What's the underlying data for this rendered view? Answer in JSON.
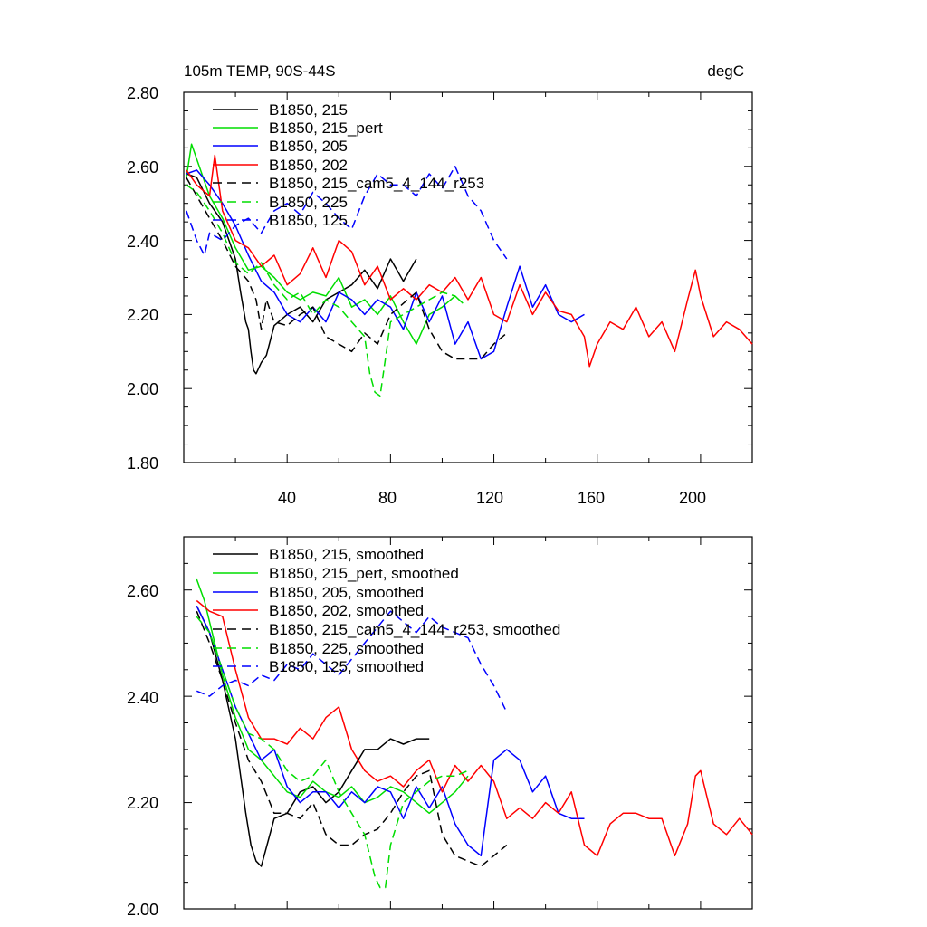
{
  "chart_data": [
    {
      "type": "line",
      "title_left": "105m TEMP, 90S-44S",
      "title_right": "degC",
      "xlim": [
        0,
        220
      ],
      "ylim": [
        1.8,
        2.8
      ],
      "xticks": [
        40,
        80,
        120,
        160,
        200
      ],
      "xtick_labels": [
        "40",
        "80",
        "120",
        "160",
        "200"
      ],
      "yticks": [
        1.8,
        2.0,
        2.2,
        2.4,
        2.6,
        2.8
      ],
      "ytick_labels": [
        "1.80",
        "2.00",
        "2.20",
        "2.40",
        "2.60",
        "2.80"
      ],
      "grid": false,
      "legend_position": "top-left",
      "series": [
        {
          "name": "B1850, 215",
          "color": "#000000",
          "dash": "solid",
          "x": [
            1,
            5,
            10,
            15,
            20,
            22,
            24,
            25,
            26,
            27,
            28,
            30,
            32,
            35,
            40,
            45,
            50,
            55,
            60,
            65,
            70,
            75,
            80,
            85,
            90
          ],
          "y": [
            2.58,
            2.57,
            2.5,
            2.45,
            2.35,
            2.26,
            2.18,
            2.16,
            2.1,
            2.05,
            2.04,
            2.07,
            2.09,
            2.17,
            2.2,
            2.22,
            2.18,
            2.24,
            2.26,
            2.28,
            2.32,
            2.27,
            2.35,
            2.29,
            2.35
          ]
        },
        {
          "name": "B1850, 215_pert",
          "color": "#00dd00",
          "dash": "solid",
          "x": [
            1,
            3,
            5,
            8,
            10,
            15,
            20,
            25,
            30,
            35,
            40,
            45,
            50,
            55,
            60,
            65,
            70,
            75,
            80,
            85,
            90,
            95,
            100,
            105,
            108
          ],
          "y": [
            2.57,
            2.66,
            2.62,
            2.56,
            2.52,
            2.46,
            2.38,
            2.32,
            2.33,
            2.3,
            2.26,
            2.24,
            2.26,
            2.25,
            2.3,
            2.22,
            2.24,
            2.2,
            2.25,
            2.18,
            2.12,
            2.2,
            2.22,
            2.25,
            2.23
          ]
        },
        {
          "name": "B1850, 205",
          "color": "#0000ff",
          "dash": "solid",
          "x": [
            1,
            5,
            10,
            15,
            20,
            25,
            30,
            35,
            40,
            45,
            50,
            55,
            60,
            65,
            70,
            75,
            80,
            85,
            90,
            95,
            100,
            105,
            110,
            115,
            120,
            125,
            130,
            135,
            140,
            145,
            150,
            155
          ],
          "y": [
            2.58,
            2.59,
            2.55,
            2.5,
            2.44,
            2.36,
            2.29,
            2.26,
            2.2,
            2.18,
            2.22,
            2.18,
            2.26,
            2.24,
            2.2,
            2.24,
            2.22,
            2.16,
            2.26,
            2.18,
            2.25,
            2.12,
            2.18,
            2.08,
            2.1,
            2.22,
            2.33,
            2.22,
            2.28,
            2.2,
            2.18,
            2.2
          ]
        },
        {
          "name": "B1850, 202",
          "color": "#ff0000",
          "dash": "solid",
          "x": [
            1,
            5,
            10,
            12,
            15,
            20,
            25,
            30,
            35,
            40,
            45,
            50,
            55,
            60,
            65,
            70,
            75,
            80,
            85,
            90,
            95,
            100,
            105,
            110,
            115,
            120,
            125,
            130,
            135,
            140,
            145,
            150,
            155,
            157,
            160,
            165,
            170,
            175,
            180,
            185,
            190,
            195,
            198,
            200,
            205,
            210,
            215,
            220
          ],
          "y": [
            2.59,
            2.55,
            2.52,
            2.63,
            2.48,
            2.4,
            2.38,
            2.33,
            2.36,
            2.28,
            2.31,
            2.38,
            2.3,
            2.4,
            2.37,
            2.28,
            2.33,
            2.24,
            2.27,
            2.24,
            2.28,
            2.26,
            2.3,
            2.24,
            2.3,
            2.2,
            2.18,
            2.28,
            2.2,
            2.26,
            2.21,
            2.2,
            2.14,
            2.06,
            2.12,
            2.18,
            2.16,
            2.22,
            2.14,
            2.18,
            2.1,
            2.24,
            2.32,
            2.25,
            2.14,
            2.18,
            2.16,
            2.12
          ]
        },
        {
          "name": "B1850, 215_cam5_4_144_r253",
          "color": "#000000",
          "dash": "dash",
          "x": [
            1,
            5,
            10,
            15,
            20,
            25,
            28,
            30,
            32,
            35,
            40,
            45,
            50,
            55,
            60,
            65,
            70,
            75,
            80,
            85,
            90,
            95,
            100,
            105,
            110,
            115,
            120,
            125
          ],
          "y": [
            2.57,
            2.52,
            2.46,
            2.4,
            2.33,
            2.29,
            2.24,
            2.16,
            2.24,
            2.18,
            2.17,
            2.2,
            2.22,
            2.14,
            2.12,
            2.1,
            2.15,
            2.12,
            2.2,
            2.23,
            2.26,
            2.16,
            2.1,
            2.08,
            2.08,
            2.08,
            2.12,
            2.15
          ]
        },
        {
          "name": "B1850, 225",
          "color": "#00dd00",
          "dash": "dash",
          "x": [
            1,
            5,
            10,
            15,
            20,
            25,
            30,
            35,
            40,
            45,
            50,
            55,
            60,
            65,
            70,
            72,
            74,
            76,
            78,
            80,
            85,
            90,
            95,
            100,
            105
          ],
          "y": [
            2.55,
            2.53,
            2.48,
            2.42,
            2.34,
            2.31,
            2.34,
            2.28,
            2.24,
            2.26,
            2.2,
            2.24,
            2.22,
            2.18,
            2.14,
            2.04,
            1.99,
            1.98,
            2.08,
            2.18,
            2.2,
            2.22,
            2.24,
            2.26,
            2.25
          ]
        },
        {
          "name": "B1850, 125",
          "color": "#0000ff",
          "dash": "dash",
          "x": [
            1,
            3,
            5,
            8,
            10,
            15,
            20,
            25,
            30,
            35,
            40,
            45,
            50,
            55,
            60,
            65,
            70,
            75,
            80,
            85,
            90,
            95,
            100,
            105,
            110,
            115,
            120,
            125
          ],
          "y": [
            2.48,
            2.44,
            2.4,
            2.36,
            2.42,
            2.4,
            2.44,
            2.46,
            2.42,
            2.48,
            2.5,
            2.47,
            2.53,
            2.5,
            2.46,
            2.43,
            2.52,
            2.58,
            2.55,
            2.55,
            2.52,
            2.58,
            2.54,
            2.6,
            2.52,
            2.48,
            2.4,
            2.35
          ]
        }
      ]
    },
    {
      "type": "line",
      "xlim": [
        0,
        220
      ],
      "ylim": [
        2.0,
        2.7
      ],
      "yticks": [
        2.0,
        2.2,
        2.4,
        2.6
      ],
      "ytick_labels": [
        "2.00",
        "2.20",
        "2.40",
        "2.60"
      ],
      "grid": false,
      "legend_position": "top-left",
      "series": [
        {
          "name": "B1850, 215, smoothed",
          "color": "#000000",
          "dash": "solid",
          "x": [
            5,
            10,
            15,
            20,
            22,
            24,
            26,
            28,
            30,
            35,
            40,
            45,
            50,
            55,
            60,
            65,
            70,
            75,
            80,
            85,
            90,
            95
          ],
          "y": [
            2.57,
            2.52,
            2.43,
            2.32,
            2.25,
            2.18,
            2.12,
            2.09,
            2.08,
            2.17,
            2.18,
            2.22,
            2.23,
            2.2,
            2.22,
            2.26,
            2.3,
            2.3,
            2.32,
            2.31,
            2.32,
            2.32
          ]
        },
        {
          "name": "B1850, 215_pert, smoothed",
          "color": "#00dd00",
          "dash": "solid",
          "x": [
            5,
            8,
            10,
            15,
            20,
            25,
            30,
            35,
            40,
            45,
            50,
            55,
            60,
            65,
            70,
            75,
            80,
            85,
            90,
            95,
            100,
            105,
            110
          ],
          "y": [
            2.62,
            2.58,
            2.54,
            2.44,
            2.36,
            2.3,
            2.28,
            2.25,
            2.22,
            2.21,
            2.24,
            2.22,
            2.21,
            2.23,
            2.2,
            2.21,
            2.23,
            2.22,
            2.2,
            2.18,
            2.2,
            2.22,
            2.25
          ]
        },
        {
          "name": "B1850, 205, smoothed",
          "color": "#0000ff",
          "dash": "solid",
          "x": [
            5,
            10,
            15,
            20,
            25,
            30,
            35,
            40,
            45,
            50,
            55,
            60,
            65,
            70,
            75,
            80,
            85,
            90,
            95,
            100,
            105,
            110,
            115,
            120,
            125,
            130,
            135,
            140,
            145,
            150,
            155
          ],
          "y": [
            2.57,
            2.52,
            2.45,
            2.38,
            2.33,
            2.28,
            2.3,
            2.23,
            2.2,
            2.22,
            2.22,
            2.19,
            2.22,
            2.2,
            2.23,
            2.22,
            2.17,
            2.23,
            2.19,
            2.23,
            2.16,
            2.12,
            2.1,
            2.28,
            2.3,
            2.28,
            2.22,
            2.25,
            2.18,
            2.17,
            2.17
          ]
        },
        {
          "name": "B1850, 202, smoothed",
          "color": "#ff0000",
          "dash": "solid",
          "x": [
            5,
            10,
            15,
            20,
            25,
            30,
            35,
            40,
            45,
            50,
            55,
            60,
            65,
            70,
            75,
            80,
            85,
            90,
            95,
            100,
            105,
            110,
            115,
            120,
            125,
            130,
            135,
            140,
            145,
            150,
            155,
            160,
            165,
            170,
            175,
            180,
            185,
            190,
            195,
            198,
            200,
            205,
            210,
            215,
            220
          ],
          "y": [
            2.58,
            2.56,
            2.55,
            2.45,
            2.36,
            2.32,
            2.32,
            2.31,
            2.34,
            2.32,
            2.36,
            2.38,
            2.3,
            2.26,
            2.24,
            2.25,
            2.23,
            2.26,
            2.28,
            2.22,
            2.27,
            2.24,
            2.27,
            2.24,
            2.17,
            2.19,
            2.17,
            2.2,
            2.18,
            2.22,
            2.12,
            2.1,
            2.16,
            2.18,
            2.18,
            2.17,
            2.17,
            2.1,
            2.16,
            2.25,
            2.26,
            2.16,
            2.14,
            2.17,
            2.14
          ]
        },
        {
          "name": "B1850, 215_cam5_4_144_r253, smoothed",
          "color": "#000000",
          "dash": "dash",
          "x": [
            5,
            10,
            15,
            20,
            25,
            30,
            35,
            40,
            45,
            50,
            55,
            60,
            65,
            70,
            75,
            80,
            85,
            90,
            95,
            100,
            105,
            110,
            115,
            120,
            125
          ],
          "y": [
            2.56,
            2.5,
            2.43,
            2.35,
            2.28,
            2.24,
            2.18,
            2.18,
            2.17,
            2.2,
            2.14,
            2.12,
            2.12,
            2.14,
            2.15,
            2.18,
            2.22,
            2.25,
            2.26,
            2.14,
            2.1,
            2.09,
            2.08,
            2.1,
            2.12
          ]
        },
        {
          "name": "B1850, 225, smoothed",
          "color": "#00dd00",
          "dash": "dash",
          "x": [
            5,
            10,
            15,
            20,
            25,
            30,
            35,
            40,
            45,
            50,
            55,
            60,
            65,
            70,
            72,
            74,
            76,
            78,
            80,
            85,
            90,
            95,
            100,
            105,
            110
          ],
          "y": [
            2.55,
            2.52,
            2.45,
            2.38,
            2.33,
            2.32,
            2.3,
            2.26,
            2.24,
            2.25,
            2.28,
            2.22,
            2.18,
            2.14,
            2.1,
            2.06,
            2.04,
            2.04,
            2.12,
            2.2,
            2.22,
            2.24,
            2.25,
            2.25,
            2.26
          ]
        },
        {
          "name": "B1850, 125, smoothed",
          "color": "#0000ff",
          "dash": "dash",
          "x": [
            5,
            10,
            15,
            20,
            25,
            30,
            35,
            40,
            45,
            50,
            55,
            60,
            65,
            70,
            75,
            80,
            85,
            90,
            95,
            100,
            105,
            110,
            115,
            120,
            125
          ],
          "y": [
            2.41,
            2.4,
            2.42,
            2.43,
            2.42,
            2.44,
            2.43,
            2.46,
            2.45,
            2.48,
            2.46,
            2.44,
            2.47,
            2.5,
            2.53,
            2.56,
            2.54,
            2.52,
            2.55,
            2.53,
            2.52,
            2.51,
            2.46,
            2.42,
            2.37
          ]
        }
      ]
    }
  ]
}
